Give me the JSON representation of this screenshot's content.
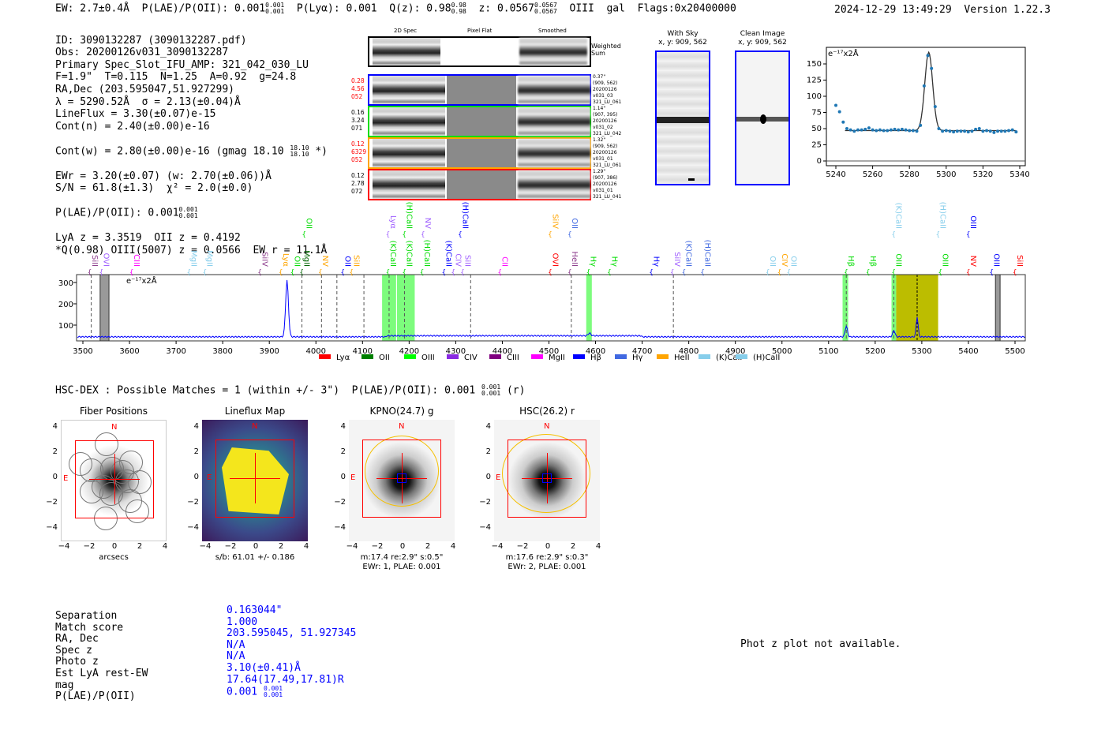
{
  "header": {
    "ew": "EW: 2.7±0.4Å",
    "plae_label": "P(LAE)/P(OII): 0.001",
    "plae_hi": "0.001",
    "plae_lo": "0.001",
    "plya": "P(Lyα): 0.001",
    "qz": "Q(z): 0.98",
    "qz_hi": "0.98",
    "qz_lo": "0.98",
    "z": "z: 0.0567",
    "z_hi": "0.0567",
    "z_lo": "0.0567",
    "line": "OIII  gal  Flags:0x20400000",
    "datetime": "2024-12-29 13:49:29",
    "version": "Version 1.22.3"
  },
  "info": {
    "lines": [
      "ID: 3090132287 (3090132287.pdf)",
      "Obs: 20200126v031_3090132287",
      "Primary Spec_Slot_IFU_AMP: 321_042_030_LU",
      "F=1.9\"  T=0.115  N=1.25  A=0.92  g=24.8",
      "RA,Dec (203.595047,51.927299)",
      "λ = 5290.52Å  σ = 2.13(±0.04)Å",
      "LineFlux = 3.30(±0.07)e-15",
      "Cont(n) = 2.40(±0.00)e-16"
    ],
    "cont_w": "Cont(w) = 2.80(±0.00)e-16 (gmag 18.10",
    "cont_w_hi": "18.10",
    "cont_w_lo": "18.10",
    "cont_w_end": " *)",
    "lines2": [
      "EWr = 3.20(±0.07) (w: 2.70(±0.06))Å",
      "S/N = 61.8(±1.3)  χ² = 2.0(±0.0)"
    ],
    "plae": "P(LAE)/P(OII): 0.001",
    "plae_hi": "0.001",
    "plae_lo": "0.001",
    "lines3": [
      "LyA z = 3.3519  OII z = 0.4192",
      "*Q(0.98) OIII(5007) z = 0.0566  EW r = 11.1Å"
    ]
  },
  "cutouts": {
    "headers": [
      "2D Spec",
      "Pixel Flat",
      "Smoothed"
    ],
    "weighted": "Weighted Sum",
    "rows": [
      {
        "color": "#0000ff",
        "left": [
          "0.28",
          "4.56",
          "052"
        ],
        "left_color": "#ff0000",
        "right": [
          "0.37\"",
          "(909, 562)",
          "20200126",
          "v031_03",
          "321_LU_061"
        ]
      },
      {
        "color": "#00dd00",
        "left": [
          "0.16",
          "3.24",
          "071"
        ],
        "left_color": "#000000",
        "right": [
          "1.14\"",
          "(907, 395)",
          "20200126",
          "v031_02",
          "321_LU_042"
        ]
      },
      {
        "color": "#ffa500",
        "left": [
          "0.12",
          "6329",
          "052"
        ],
        "left_color": "#ff0000",
        "right": [
          "1.32\"",
          "(909, 562)",
          "20200126",
          "v031_01",
          "321_LU_061"
        ]
      },
      {
        "color": "#ff0000",
        "left": [
          "0.12",
          "2.78",
          "072"
        ],
        "left_color": "#000000",
        "right": [
          "1.29\"",
          "(907, 386)",
          "20200126",
          "v031_01",
          "321_LU_041"
        ]
      }
    ]
  },
  "sky": {
    "with_title": "With Sky",
    "with_coords": "x, y: 909, 562",
    "clean_title": "Clean Image",
    "clean_coords": "x, y: 909, 562"
  },
  "zoom_plot": {
    "units": "e⁻¹⁷x2Å",
    "xticks": [
      5240,
      5260,
      5280,
      5300,
      5320,
      5340
    ],
    "yticks": [
      0,
      25,
      50,
      75,
      100,
      125,
      150
    ],
    "points": [
      [
        5240,
        86
      ],
      [
        5242,
        76
      ],
      [
        5244,
        60
      ],
      [
        5246,
        50
      ],
      [
        5248,
        48
      ],
      [
        5250,
        46
      ],
      [
        5252,
        48
      ],
      [
        5254,
        48
      ],
      [
        5256,
        49
      ],
      [
        5258,
        51
      ],
      [
        5260,
        48
      ],
      [
        5262,
        47
      ],
      [
        5264,
        48
      ],
      [
        5266,
        47
      ],
      [
        5268,
        47
      ],
      [
        5270,
        48
      ],
      [
        5272,
        49
      ],
      [
        5274,
        48
      ],
      [
        5276,
        49
      ],
      [
        5278,
        48
      ],
      [
        5280,
        47
      ],
      [
        5282,
        47
      ],
      [
        5284,
        46
      ],
      [
        5286,
        55
      ],
      [
        5288,
        116
      ],
      [
        5290,
        163
      ],
      [
        5292,
        143
      ],
      [
        5294,
        84
      ],
      [
        5296,
        50
      ],
      [
        5298,
        46
      ],
      [
        5300,
        47
      ],
      [
        5302,
        46
      ],
      [
        5304,
        45
      ],
      [
        5306,
        46
      ],
      [
        5308,
        46
      ],
      [
        5310,
        46
      ],
      [
        5312,
        45
      ],
      [
        5314,
        46
      ],
      [
        5316,
        49
      ],
      [
        5318,
        50
      ],
      [
        5320,
        46
      ],
      [
        5322,
        47
      ],
      [
        5324,
        46
      ],
      [
        5326,
        44
      ],
      [
        5328,
        46
      ],
      [
        5330,
        46
      ],
      [
        5332,
        46
      ],
      [
        5334,
        47
      ],
      [
        5336,
        48
      ],
      [
        5338,
        45
      ]
    ],
    "fit": {
      "center": 5290.5,
      "sigma": 2.13,
      "amp": 121,
      "base": 47,
      "range": [
        5245,
        5338
      ]
    }
  },
  "spectrum": {
    "units": "e⁻¹⁷x2Å",
    "xticks": [
      3500,
      3600,
      3700,
      3800,
      3900,
      4000,
      4100,
      4200,
      4300,
      4400,
      4500,
      4600,
      4700,
      4800,
      4900,
      5000,
      5100,
      5200,
      5300,
      5400,
      5500
    ],
    "yticks": [
      100,
      200,
      300
    ],
    "peaks": [
      [
        3938,
        265,
        3
      ],
      [
        4587,
        12,
        3
      ],
      [
        5138,
        50,
        2.5
      ],
      [
        5240,
        30,
        2.5
      ],
      [
        5290,
        95,
        2
      ]
    ],
    "dashed": [
      3518,
      3970,
      4012,
      4045,
      4103,
      4157,
      4190,
      4332,
      4548,
      4767,
      5138,
      5240
    ],
    "green_bands": [
      [
        4142,
        4172
      ],
      [
        4174,
        4212
      ],
      [
        4580,
        4592
      ],
      [
        5130,
        5142
      ],
      [
        5235,
        5245
      ]
    ],
    "olive_band": [
      5245,
      5335
    ],
    "masked": [
      [
        3537,
        3556
      ],
      [
        5458,
        5468
      ]
    ],
    "labels_low": [
      [
        3515,
        "SiII",
        "#8b3a8b"
      ],
      [
        3540,
        "OVI",
        "#a060ff"
      ],
      [
        3605,
        "CIII",
        "#ff00ff"
      ],
      [
        3728,
        "MgII",
        "#87ceeb"
      ],
      [
        3762,
        "MgII",
        "#87ceeb"
      ],
      [
        3880,
        "SiIV",
        "#8b3a8b"
      ],
      [
        3925,
        "Lyα",
        "#ffa500"
      ],
      [
        3950,
        "OII",
        "#00dd00"
      ],
      [
        3970,
        "MgII",
        "#006400"
      ],
      [
        4010,
        "NV",
        "#ffa500"
      ],
      [
        4058,
        "OII",
        "#0000ff"
      ],
      [
        4075,
        "SiII",
        "#ffa500"
      ],
      [
        4155,
        "(K)CaII",
        "#00dd00"
      ],
      [
        4190,
        "(K)CaII",
        "#00dd00"
      ],
      [
        4228,
        "(H)CaII",
        "#00dd00"
      ],
      [
        4275,
        "(K)CaII",
        "#0000ff"
      ],
      [
        4295,
        "CIV",
        "#a060ff"
      ],
      [
        4315,
        "SiII",
        "#a060ff"
      ],
      [
        4395,
        "CII",
        "#ff00ff"
      ],
      [
        4503,
        "OVI",
        "#ff0000"
      ],
      [
        4545,
        "HeII",
        "#8b3a8b"
      ],
      [
        4585,
        "Hγ",
        "#00dd00"
      ],
      [
        4630,
        "Hγ",
        "#00dd00"
      ],
      [
        4720,
        "Hγ",
        "#0000ff"
      ],
      [
        4765,
        "SiIV",
        "#a060ff"
      ],
      [
        4790,
        "(K)CaII",
        "#4169e1"
      ],
      [
        4830,
        "(H)CaII",
        "#4169e1"
      ],
      [
        4970,
        "OII",
        "#87ceeb"
      ],
      [
        4995,
        "CIV",
        "#ffa500"
      ],
      [
        5015,
        "OII",
        "#87ceeb"
      ],
      [
        5138,
        "Hβ",
        "#00dd00"
      ],
      [
        5185,
        "Hβ",
        "#00dd00"
      ],
      [
        5240,
        "OIII",
        "#00dd00"
      ],
      [
        5340,
        "OIII",
        "#00dd00"
      ],
      [
        5400,
        "NV",
        "#ff0000"
      ],
      [
        5450,
        "OIII",
        "#0000ff"
      ],
      [
        5500,
        "SiII",
        "#ff0000"
      ]
    ],
    "labels_high": [
      [
        3975,
        "OII",
        "#00dd00"
      ],
      [
        4155,
        "Lyα",
        "#a060ff"
      ],
      [
        4190,
        "(H)CaII",
        "#00dd00"
      ],
      [
        4230,
        "NV",
        "#a060ff"
      ],
      [
        4310,
        "(H)CaII",
        "#0000ff"
      ],
      [
        4503,
        "SiIV",
        "#ffa500"
      ],
      [
        4545,
        "OII",
        "#4169e1"
      ],
      [
        5240,
        "(K)CaII",
        "#87ceeb"
      ],
      [
        5335,
        "(H)CaII",
        "#87ceeb"
      ],
      [
        5400,
        "OIII",
        "#0000ff"
      ]
    ],
    "legend": [
      [
        "Lyα",
        "#ff0000"
      ],
      [
        "OII",
        "#008000"
      ],
      [
        "OIII",
        "#00ff00"
      ],
      [
        "CIV",
        "#8a2be2"
      ],
      [
        "CIII",
        "#800080"
      ],
      [
        "MgII",
        "#ff00ff"
      ],
      [
        "Hβ",
        "#0000ff"
      ],
      [
        "Hγ",
        "#4169e1"
      ],
      [
        "HeII",
        "#ffa500"
      ],
      [
        "(K)CaII",
        "#87ceeb"
      ],
      [
        "(H)CaII",
        "#87ceeb"
      ]
    ]
  },
  "hsc": {
    "label": "HSC-DEX : Possible Matches = 1 (within +/- 3\")  P(LAE)/P(OII): 0.001",
    "hi": "0.001",
    "lo": "0.001",
    "end": " (r)"
  },
  "panels": [
    {
      "title": "Fiber Positions",
      "caption": [
        "arcsecs"
      ]
    },
    {
      "title": "Lineflux Map",
      "caption": [
        "s/b: 61.01 +/- 0.186"
      ]
    },
    {
      "title": "KPNO(24.7) g",
      "caption": [
        "m:17.4  re:2.9\"  s:0.5\"",
        "EWr: 1, PLAE: 0.001"
      ]
    },
    {
      "title": "HSC(26.2) r",
      "caption": [
        "m:17.6  re:2.9\"  s:0.3\"",
        "EWr: 2, PLAE: 0.001"
      ]
    }
  ],
  "panel_ticks": [
    "−4",
    "−2",
    "0",
    "2",
    "4"
  ],
  "panel_yticks": [
    "4",
    "2",
    "0",
    "−2",
    "−4"
  ],
  "north": "N",
  "east": "E",
  "match": {
    "labels": [
      "Separation",
      "Match score",
      "RA, Dec",
      "Spec z",
      "Photo z",
      "Est LyA rest-EW",
      "mag",
      "P(LAE)/P(OII)"
    ],
    "values": [
      "0.163044\"",
      "1.000",
      "203.595045, 51.927345",
      "N/A",
      "N/A",
      "3.10(±0.41)Å",
      "17.64(17.49,17.81)R",
      "0.001"
    ],
    "plae_hi": "0.001",
    "plae_lo": "0.001"
  },
  "photz": "Phot z plot not available."
}
